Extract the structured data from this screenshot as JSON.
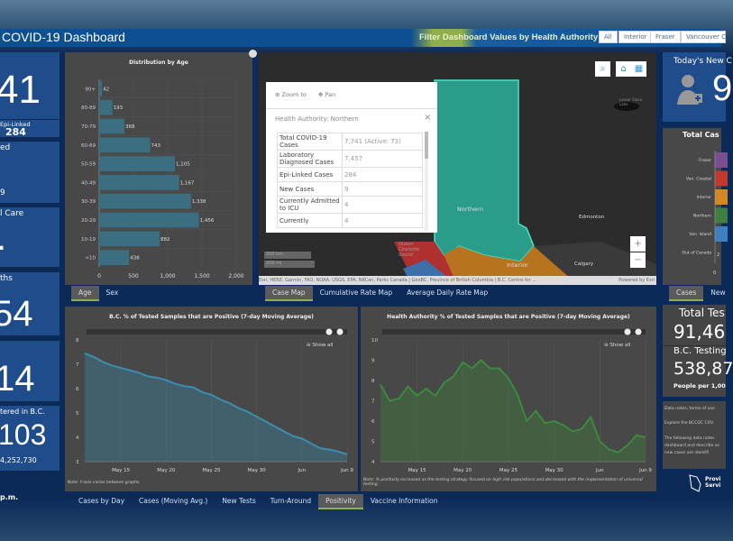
{
  "header": {
    "title": "COVID-19 Dashboard",
    "filter_label": "Filter Dashboard Values by Health Authority:",
    "filters": [
      "All",
      "Interior",
      "Fraser",
      "Vancouver C"
    ]
  },
  "left_tiles": [
    {
      "value": "41",
      "sub_label": "Epi-Linked",
      "sub_value": "284"
    },
    {
      "label": "ed",
      "value": "9"
    },
    {
      "label": "l Care",
      "value": "."
    },
    {
      "label": "ths",
      "value": "54"
    },
    {
      "value": "14"
    },
    {
      "label": "tered in B.C.",
      "value": "103",
      "sub_value": "4,252,730"
    }
  ],
  "left_footer": "p.m.",
  "age_chart": {
    "tabs": [
      "Age",
      "Sex"
    ],
    "active_tab": "Age",
    "chart_data": {
      "type": "bar",
      "orientation": "horizontal",
      "title": "Distribution by Age",
      "categories": [
        "90+",
        "80-89",
        "70-79",
        "60-69",
        "50-59",
        "40-49",
        "30-39",
        "20-29",
        "10-19",
        "<10"
      ],
      "values": [
        42,
        193,
        368,
        743,
        1105,
        1167,
        1338,
        1456,
        882,
        438
      ],
      "value_labels": [
        "42",
        "193",
        "368",
        "743",
        "1,105",
        "1,167",
        "1,338",
        "1,456",
        "882",
        "438"
      ],
      "xlim": [
        0,
        2000
      ],
      "xticks": [
        "0",
        "500",
        "1,000",
        "1,500",
        "2,000"
      ],
      "grid": true,
      "color": "#3a6e80"
    }
  },
  "map": {
    "tabs": [
      "Case Map",
      "Cumulative Rate Map",
      "Average Daily Rate Map"
    ],
    "active_tab": "Case Map",
    "labels": {
      "northern": "Northern",
      "interior": "Interior",
      "edmonton": "Edmonton",
      "calgary": "Calgary",
      "queen_charlotte": "Queen Charlotte Sound",
      "lake": "Lesser Slave Lake"
    },
    "scale": [
      "300 km",
      "200 mi"
    ],
    "attribution": "Esri, HERE, Garmin, FAO, NOAA, USGS, EPA, NRCan, Parks Canada | GeoBC, Province of British Columbia | B.C. Centre for ...",
    "powered_by": "Powered by Esri",
    "popup": {
      "zoom_to": "Zoom to",
      "pan": "Pan",
      "title": "Health Authority: Northern",
      "rows": [
        [
          "Total COVID-19 Cases",
          "7,741 (Active: 73)"
        ],
        [
          "Laboratory Diagnosed Cases",
          "7,457"
        ],
        [
          "Epi-Linked Cases",
          "284"
        ],
        [
          "New Cases",
          "9"
        ],
        [
          "Currently Admitted to ICU",
          "4"
        ],
        [
          "Currently",
          "4"
        ]
      ]
    },
    "colors": {
      "northern": "#2a9d8a",
      "interior": "#b8731e",
      "coastal": "#c0392b",
      "island": "#3d6fa8"
    }
  },
  "positivity_left": {
    "title": "B.C. % of Tested Samples that are Positive (7-day Moving Average)",
    "show_all": "Show all",
    "note": "Note: Y-axis varies between graphs.",
    "chart_data": {
      "type": "area",
      "x_start": "May 11",
      "x_end": "Jun 9",
      "xticks": [
        {
          "day": "May 15",
          "label": "May 15"
        },
        {
          "day": "May 20",
          "label": "May 20"
        },
        {
          "day": "May 25",
          "label": "May 25"
        },
        {
          "day": "May 30",
          "label": "May 30"
        },
        {
          "day": "Jun 4",
          "label": "Jun"
        },
        {
          "day": "Jun 9",
          "label": "Jun 9"
        }
      ],
      "ylim": [
        3,
        8
      ],
      "yticks": [
        3,
        4,
        5,
        6,
        7,
        8
      ],
      "grid": true,
      "color": "#3a8fb0",
      "values": [
        7.45,
        7.3,
        7.1,
        6.95,
        6.85,
        6.75,
        6.65,
        6.5,
        6.45,
        6.35,
        6.2,
        6.1,
        6.05,
        5.85,
        5.75,
        5.55,
        5.4,
        5.2,
        5.05,
        4.85,
        4.65,
        4.45,
        4.25,
        4.05,
        3.95,
        3.75,
        3.55,
        3.5,
        3.42,
        3.3
      ]
    }
  },
  "positivity_right": {
    "title": "Health Authority % of Tested Samples that are Positive (7-day Moving Average)",
    "show_all": "Show all",
    "note": "Note: % positivity increased as the testing strategy focused on high risk populations and decreased with the implementation of universal testing.",
    "chart_data": {
      "type": "area",
      "x_start": "May 11",
      "x_end": "Jun 9",
      "xticks": [
        {
          "day": "May 15",
          "label": "May 15"
        },
        {
          "day": "May 20",
          "label": "May 20"
        },
        {
          "day": "May 25",
          "label": "May 25"
        },
        {
          "day": "May 30",
          "label": "May 30"
        },
        {
          "day": "Jun 4",
          "label": "Jun"
        },
        {
          "day": "Jun 9",
          "label": "Jun 9"
        }
      ],
      "ylim": [
        4,
        10
      ],
      "yticks": [
        4,
        5,
        6,
        7,
        8,
        9,
        10
      ],
      "grid": true,
      "color": "#3c8a3c",
      "values": [
        7.8,
        7.0,
        7.1,
        7.7,
        7.25,
        7.6,
        7.25,
        7.9,
        8.2,
        8.9,
        8.6,
        9.0,
        8.6,
        8.6,
        8.1,
        7.3,
        6.0,
        6.5,
        5.9,
        6.0,
        5.8,
        5.5,
        5.6,
        6.2,
        5.0,
        4.6,
        4.45,
        4.8,
        5.3,
        5.2
      ]
    }
  },
  "bottom_tabs": [
    "Cases by Day",
    "Cases (Moving Avg.)",
    "New Tests",
    "Turn-Around",
    "Positivity",
    "Vaccine Information"
  ],
  "bottom_active": "Positivity",
  "right": {
    "todays_new_label": "Today's New C",
    "todays_new_value": "9",
    "total_cases_chart": {
      "chart_data": {
        "type": "bar",
        "orientation": "horizontal",
        "stacked": true,
        "title": "Total Cas",
        "categories": [
          "Fraser",
          "Van. Coastal",
          "Interior",
          "Northern",
          "Van. Island",
          "Out of Canada"
        ],
        "colors": [
          "#7b4f8f",
          "#c0392b",
          "#d4891e",
          "#3f7f3f",
          "#3d7fbf",
          "#888888"
        ],
        "xticks": [
          "0"
        ],
        "partial_label": "2"
      }
    },
    "tabs": [
      "Cases",
      "New"
    ],
    "active_tab": "Cases",
    "total_tests_label": "Total Tes",
    "total_tests_value": "91,46",
    "testing_label": "B.C. Testing",
    "testing_value": "538,87",
    "people_label": "People per 1,00",
    "notes": [
      "Data notes, terms of use",
      "Explore the BCCDC COV",
      "The following data notes dashboard and describe as new cases are identifi"
    ],
    "logo_text": "Provi Servi"
  }
}
